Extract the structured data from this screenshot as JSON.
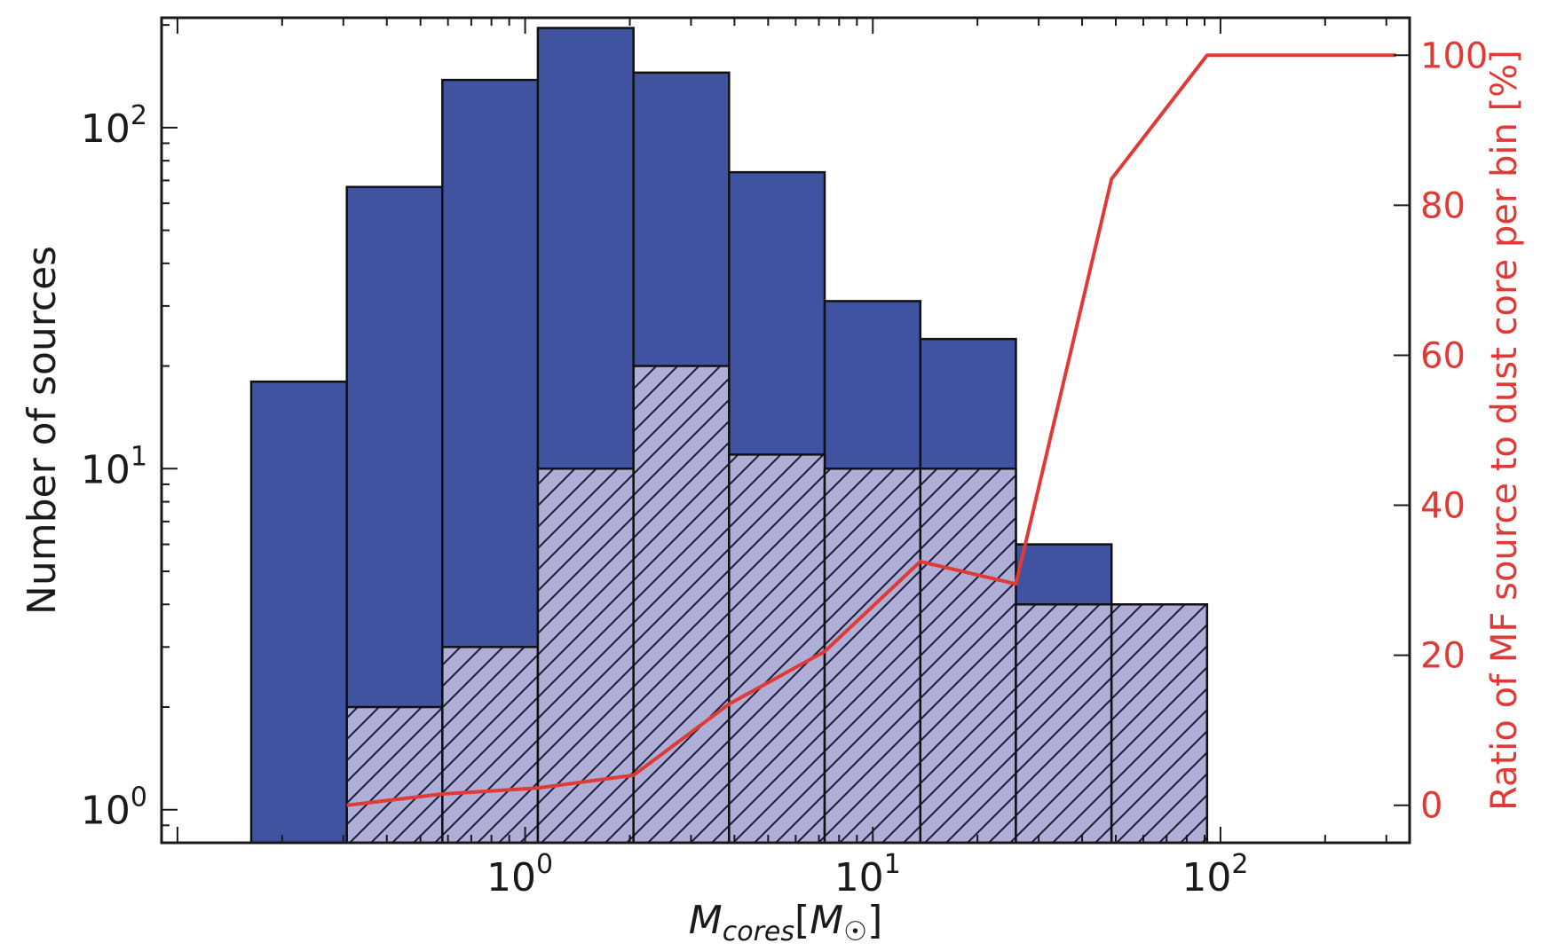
{
  "chart_data": {
    "type": "bar",
    "x_scale": "log",
    "y_scale": "log",
    "xlabel_base": "M",
    "xlabel_sub": "cores",
    "xlabel_unit_base": "M",
    "xlabel_unit_sub": "☉",
    "ylabel": "Number of sources",
    "y2label": "Ratio of MF source to dust core per bin [%]",
    "xlim": [
      0.09,
      350
    ],
    "ylim": [
      0.8,
      210
    ],
    "y2lim": [
      -5,
      105
    ],
    "x_ticks": [
      {
        "value": 1,
        "base": "10",
        "exp": "0"
      },
      {
        "value": 10,
        "base": "10",
        "exp": "1"
      },
      {
        "value": 100,
        "base": "10",
        "exp": "2"
      }
    ],
    "y_ticks": [
      {
        "value": 1,
        "base": "10",
        "exp": "0"
      },
      {
        "value": 10,
        "base": "10",
        "exp": "1"
      },
      {
        "value": 100,
        "base": "10",
        "exp": "2"
      }
    ],
    "y2_ticks": [
      {
        "value": 0,
        "label": "0"
      },
      {
        "value": 20,
        "label": "20"
      },
      {
        "value": 40,
        "label": "40"
      },
      {
        "value": 60,
        "label": "60"
      },
      {
        "value": 80,
        "label": "80"
      },
      {
        "value": 100,
        "label": "100"
      }
    ],
    "bin_edges": [
      0.163,
      0.307,
      0.578,
      1.088,
      2.05,
      3.86,
      7.27,
      13.7,
      25.8,
      48.6,
      91.5
    ],
    "series": [
      {
        "kind": "bar",
        "style": "solid",
        "color": "#3f53a0",
        "values": [
          18,
          67,
          138,
          196,
          145,
          74,
          31,
          24,
          6,
          4
        ]
      },
      {
        "kind": "bar",
        "style": "hatched",
        "color": "#aeaed6",
        "values": [
          0,
          2,
          3,
          10,
          20,
          11,
          10,
          10,
          4,
          4
        ]
      },
      {
        "kind": "line",
        "axis": "right",
        "color": "#e03a36",
        "x": [
          0.307,
          0.578,
          1.088,
          2.05,
          3.86,
          7.27,
          13.7,
          25.8,
          48.6,
          91.5,
          320
        ],
        "y": [
          0,
          1.5,
          2.3,
          4,
          13.5,
          20.5,
          32.5,
          29.5,
          83.5,
          100,
          100
        ]
      }
    ],
    "grid": false,
    "legend": "none"
  }
}
